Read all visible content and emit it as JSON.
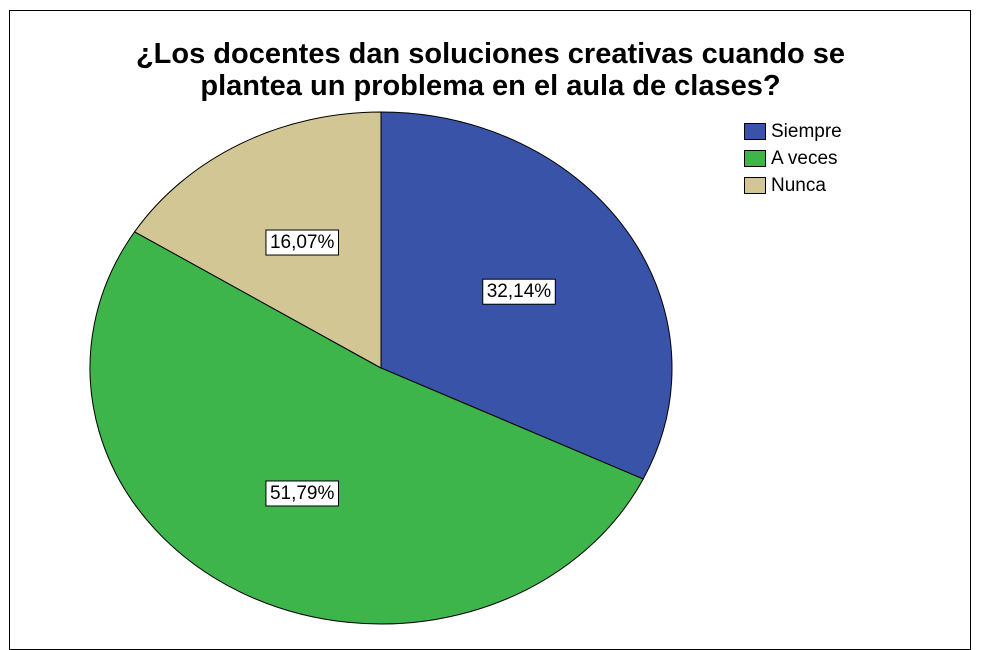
{
  "chart_data": {
    "type": "pie",
    "title_lines": [
      "¿Los docentes dan soluciones creativas cuando se",
      "plantea un problema en el aula de clases?"
    ],
    "categories": [
      "Siempre",
      "A veces",
      "Nunca"
    ],
    "values": [
      32.14,
      51.79,
      16.07
    ],
    "data_labels": [
      "32,14%",
      "51,79%",
      "16,07%"
    ],
    "colors": [
      "#3953a8",
      "#3db54a",
      "#d2c794"
    ],
    "start_angle": "12 o'clock",
    "direction": "clockwise",
    "legend_position": "top-right"
  }
}
